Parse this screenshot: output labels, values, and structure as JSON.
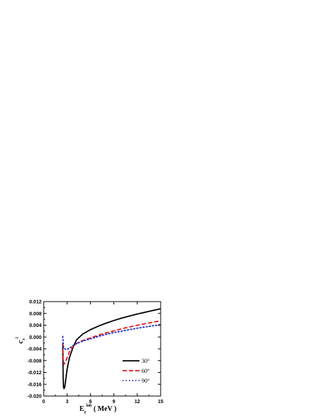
{
  "chart_data": {
    "type": "line",
    "xlabel": {
      "main": "E",
      "sub": "γ",
      "sup": "lab",
      "unit": " ( MeV )"
    },
    "ylabel": {
      "main": "c",
      "sub": "z",
      "sup": "l"
    },
    "xlim": [
      0,
      15
    ],
    "ylim": [
      -0.02,
      0.012
    ],
    "xticks": [
      0,
      3,
      6,
      9,
      12,
      15
    ],
    "xtick_labels": [
      "0",
      "3",
      "6",
      "9",
      "12",
      "15"
    ],
    "yticks": [
      0.012,
      0.008,
      0.004,
      0.0,
      -0.004,
      -0.008,
      -0.012,
      -0.016,
      -0.02
    ],
    "ytick_labels": [
      "0.012",
      "0.008",
      "0.004",
      "0.000",
      "-0.004",
      "-0.008",
      "-0.012",
      "-0.016",
      "-0.020"
    ],
    "grid": false,
    "legend_position": "lower-right",
    "series": [
      {
        "name": "30°",
        "color": "#000000",
        "style": "solid",
        "x": [
          2.45,
          2.5,
          2.55,
          2.6,
          2.7,
          2.8,
          3.0,
          3.3,
          3.7,
          4.2,
          5.0,
          6.0,
          7.0,
          8.0,
          9.0,
          10.0,
          11.0,
          12.0,
          13.0,
          14.0,
          15.0
        ],
        "y": [
          -0.002,
          -0.0145,
          -0.017,
          -0.0175,
          -0.017,
          -0.015,
          -0.011,
          -0.007,
          -0.004,
          -0.001,
          0.001,
          0.0025,
          0.0037,
          0.0047,
          0.0056,
          0.0064,
          0.0071,
          0.0078,
          0.0084,
          0.009,
          0.0096
        ]
      },
      {
        "name": "60°",
        "color": "#e8141c",
        "style": "dashed",
        "x": [
          2.45,
          2.5,
          2.6,
          2.8,
          3.0,
          3.3,
          3.7,
          4.2,
          5.0,
          6.0,
          7.0,
          8.0,
          9.0,
          10.0,
          11.0,
          12.0,
          13.0,
          14.0,
          15.0
        ],
        "y": [
          -0.002,
          -0.008,
          -0.0092,
          -0.0085,
          -0.007,
          -0.005,
          -0.0035,
          -0.0022,
          -0.0012,
          -0.0003,
          0.0006,
          0.0014,
          0.0021,
          0.0028,
          0.0034,
          0.004,
          0.0045,
          0.005,
          0.0055
        ]
      },
      {
        "name": "90°",
        "color": "#1c28c8",
        "style": "dotted",
        "x": [
          2.45,
          2.55,
          2.8,
          3.0,
          3.3,
          3.7,
          4.2,
          5.0,
          6.0,
          7.0,
          8.0,
          9.0,
          10.0,
          11.0,
          12.0,
          13.0,
          14.0,
          15.0
        ],
        "y": [
          0.0002,
          -0.0035,
          -0.0042,
          -0.0042,
          -0.0038,
          -0.003,
          -0.0022,
          -0.0014,
          -0.0006,
          0.0002,
          0.0009,
          0.0015,
          0.002,
          0.0025,
          0.003,
          0.0034,
          0.0038,
          0.0042
        ]
      }
    ]
  }
}
